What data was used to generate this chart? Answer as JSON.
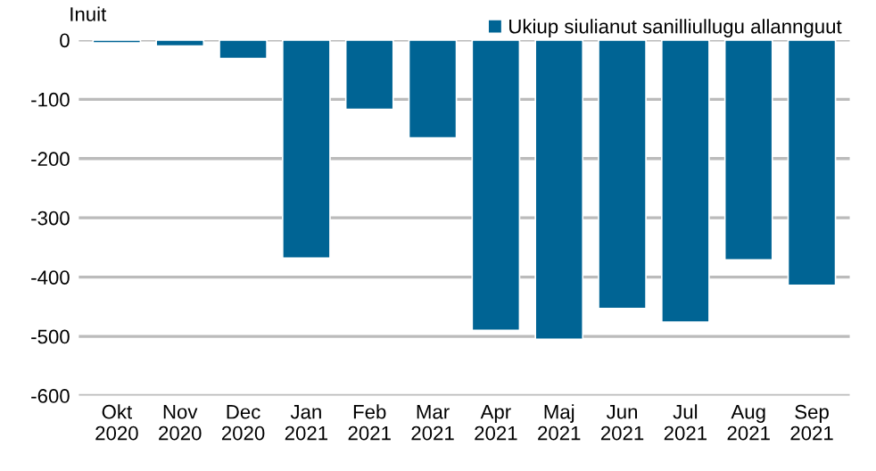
{
  "chart_data": {
    "type": "bar",
    "ylabel": "Inuit",
    "categories": [
      "Okt\n2020",
      "Nov\n2020",
      "Dec\n2020",
      "Jan\n2021",
      "Feb\n2021",
      "Mar\n2021",
      "Apr\n2021",
      "Maj\n2021",
      "Jun\n2021",
      "Jul\n2021",
      "Aug\n2021",
      "Sep\n2021"
    ],
    "series": [
      {
        "name": "Ukiup siulianut sanilliullugu allannguut",
        "color": "#006494",
        "values": [
          -5,
          -10,
          -31,
          -368,
          -117,
          -165,
          -490,
          -505,
          -453,
          -476,
          -371,
          -414
        ]
      }
    ],
    "ylim": [
      -600,
      0
    ],
    "yticks": [
      -600,
      -500,
      -400,
      -300,
      -200,
      -100,
      0
    ],
    "grid": "y",
    "legend": "top right"
  }
}
